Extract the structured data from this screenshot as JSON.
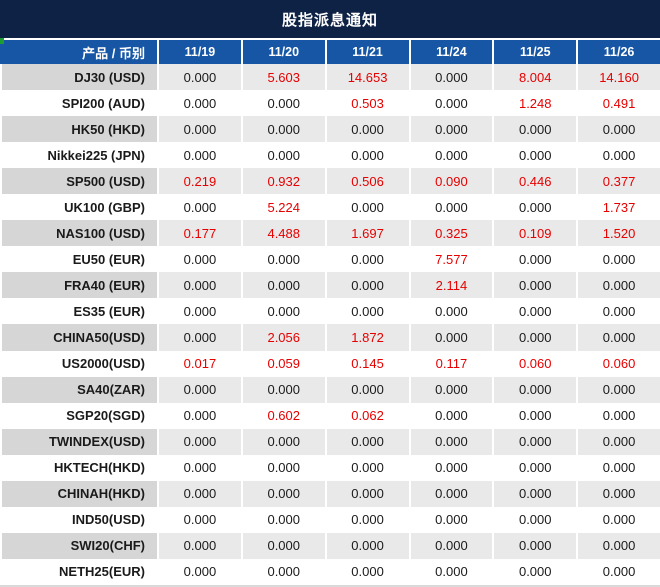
{
  "title": "股指派息通知",
  "colors": {
    "title_bg": "#0d2244",
    "header_bg": "#1656a5",
    "row_alt_bg": "#e9e9e9",
    "row_alt_label_bg": "#d6d6d6",
    "positive_value": "#e60000",
    "value_text": "#1a1a1a",
    "green_mark": "#1e9e32",
    "bottom_strip": "#d9d9d9"
  },
  "table": {
    "product_header": "产品 / 币别",
    "date_headers": [
      "11/19",
      "11/20",
      "11/21",
      "11/24",
      "11/25",
      "11/26"
    ],
    "rows": [
      {
        "product": "DJ30 (USD)",
        "values": [
          "0.000",
          "5.603",
          "14.653",
          "0.000",
          "8.004",
          "14.160"
        ]
      },
      {
        "product": "SPI200 (AUD)",
        "values": [
          "0.000",
          "0.000",
          "0.503",
          "0.000",
          "1.248",
          "0.491"
        ]
      },
      {
        "product": "HK50 (HKD)",
        "values": [
          "0.000",
          "0.000",
          "0.000",
          "0.000",
          "0.000",
          "0.000"
        ]
      },
      {
        "product": "Nikkei225 (JPN)",
        "values": [
          "0.000",
          "0.000",
          "0.000",
          "0.000",
          "0.000",
          "0.000"
        ]
      },
      {
        "product": "SP500 (USD)",
        "values": [
          "0.219",
          "0.932",
          "0.506",
          "0.090",
          "0.446",
          "0.377"
        ]
      },
      {
        "product": "UK100 (GBP)",
        "values": [
          "0.000",
          "5.224",
          "0.000",
          "0.000",
          "0.000",
          "1.737"
        ]
      },
      {
        "product": "NAS100 (USD)",
        "values": [
          "0.177",
          "4.488",
          "1.697",
          "0.325",
          "0.109",
          "1.520"
        ]
      },
      {
        "product": "EU50 (EUR)",
        "values": [
          "0.000",
          "0.000",
          "0.000",
          "7.577",
          "0.000",
          "0.000"
        ]
      },
      {
        "product": "FRA40 (EUR)",
        "values": [
          "0.000",
          "0.000",
          "0.000",
          "2.114",
          "0.000",
          "0.000"
        ]
      },
      {
        "product": "ES35 (EUR)",
        "values": [
          "0.000",
          "0.000",
          "0.000",
          "0.000",
          "0.000",
          "0.000"
        ]
      },
      {
        "product": "CHINA50(USD)",
        "values": [
          "0.000",
          "2.056",
          "1.872",
          "0.000",
          "0.000",
          "0.000"
        ]
      },
      {
        "product": "US2000(USD)",
        "values": [
          "0.017",
          "0.059",
          "0.145",
          "0.117",
          "0.060",
          "0.060"
        ]
      },
      {
        "product": "SA40(ZAR)",
        "values": [
          "0.000",
          "0.000",
          "0.000",
          "0.000",
          "0.000",
          "0.000"
        ]
      },
      {
        "product": "SGP20(SGD)",
        "values": [
          "0.000",
          "0.602",
          "0.062",
          "0.000",
          "0.000",
          "0.000"
        ]
      },
      {
        "product": "TWINDEX(USD)",
        "values": [
          "0.000",
          "0.000",
          "0.000",
          "0.000",
          "0.000",
          "0.000"
        ]
      },
      {
        "product": "HKTECH(HKD)",
        "values": [
          "0.000",
          "0.000",
          "0.000",
          "0.000",
          "0.000",
          "0.000"
        ]
      },
      {
        "product": "CHINAH(HKD)",
        "values": [
          "0.000",
          "0.000",
          "0.000",
          "0.000",
          "0.000",
          "0.000"
        ]
      },
      {
        "product": "IND50(USD)",
        "values": [
          "0.000",
          "0.000",
          "0.000",
          "0.000",
          "0.000",
          "0.000"
        ]
      },
      {
        "product": "SWI20(CHF)",
        "values": [
          "0.000",
          "0.000",
          "0.000",
          "0.000",
          "0.000",
          "0.000"
        ]
      },
      {
        "product": "NETH25(EUR)",
        "values": [
          "0.000",
          "0.000",
          "0.000",
          "0.000",
          "0.000",
          "0.000"
        ]
      }
    ]
  }
}
